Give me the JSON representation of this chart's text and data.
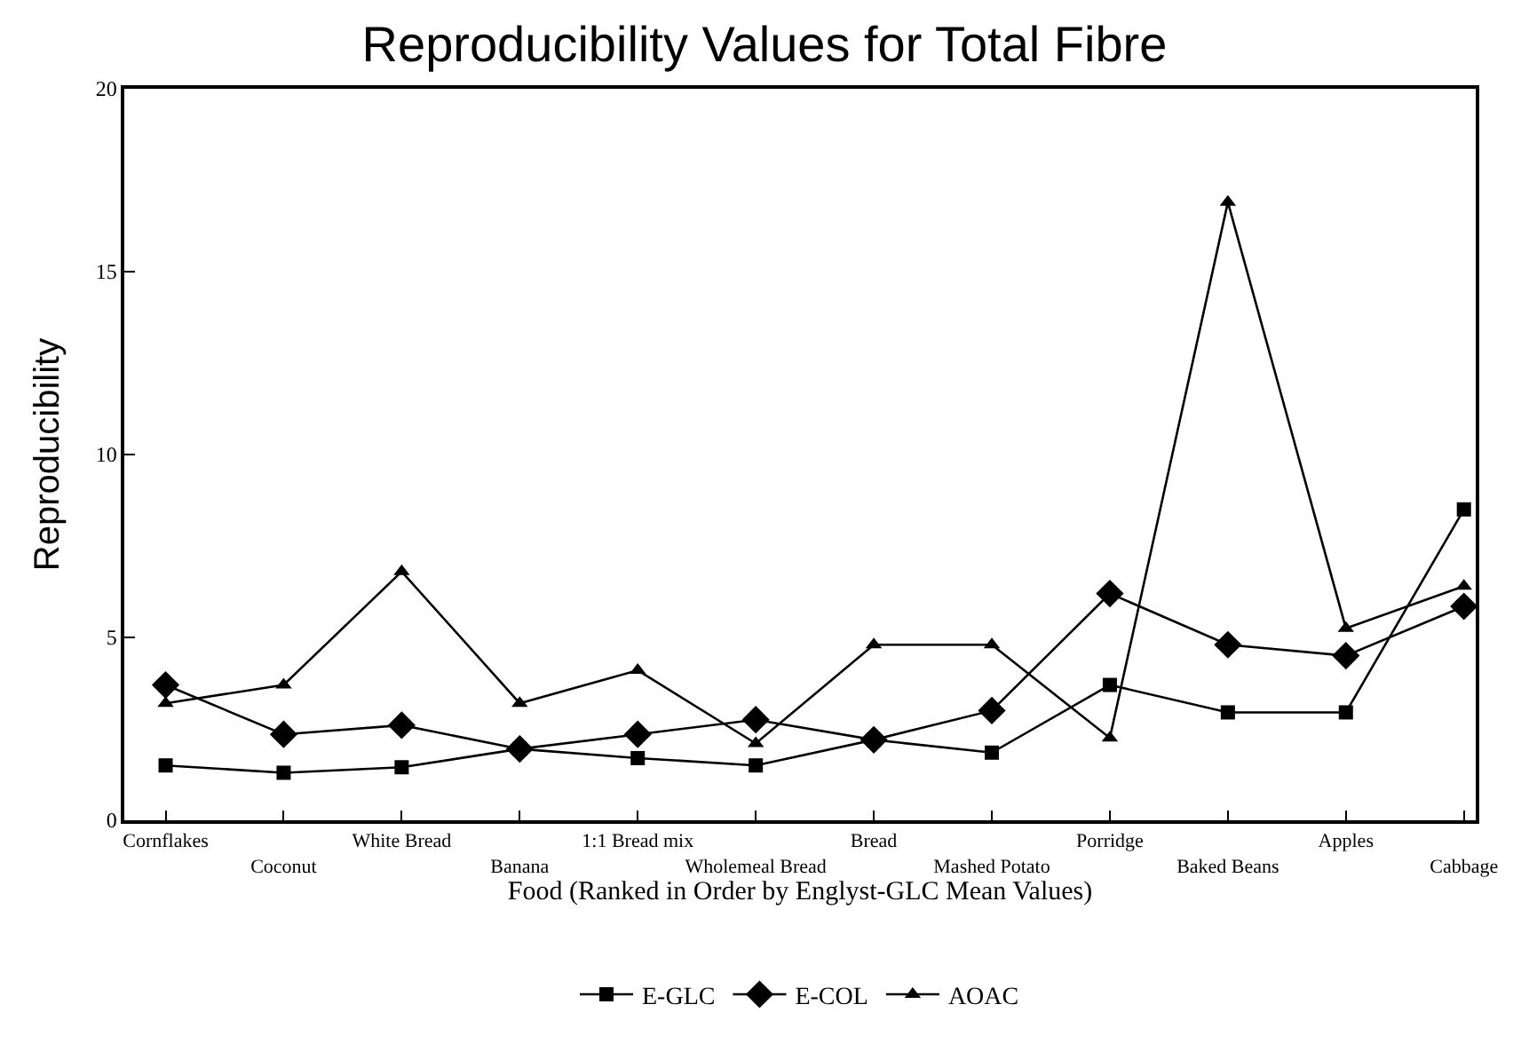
{
  "chart_data": {
    "type": "line",
    "title": "Reproducibility Values for Total Fibre",
    "xlabel": "Food (Ranked in Order by Englyst-GLC Mean Values)",
    "ylabel": "Reproducibility",
    "categories": [
      "Cornflakes",
      "Coconut",
      "White Bread",
      "Banana",
      "1:1 Bread mix",
      "Wholemeal Bread",
      "Bread",
      "Mashed Potato",
      "Porridge",
      "Baked Beans",
      "Apples",
      "Cabbage"
    ],
    "series": [
      {
        "name": "E-GLC",
        "color": "#000000",
        "marker": "square",
        "values": [
          1.5,
          1.3,
          1.45,
          1.95,
          1.7,
          1.5,
          2.2,
          1.85,
          3.7,
          2.95,
          2.95,
          8.5
        ]
      },
      {
        "name": "E-COL",
        "color": "#000000",
        "marker": "diamond",
        "values": [
          3.7,
          2.35,
          2.6,
          1.95,
          2.35,
          2.75,
          2.2,
          3.0,
          6.2,
          4.8,
          4.5,
          5.85
        ]
      },
      {
        "name": "AOAC",
        "color": "#000000",
        "marker": "triangle",
        "values": [
          3.2,
          3.7,
          6.8,
          3.2,
          4.1,
          2.1,
          4.8,
          4.8,
          2.25,
          16.9,
          5.25,
          6.4
        ]
      }
    ],
    "ylim": [
      0,
      20
    ],
    "yticks": [
      0,
      5,
      10,
      15,
      20
    ],
    "legend": "bottom",
    "line_style": "solid"
  }
}
